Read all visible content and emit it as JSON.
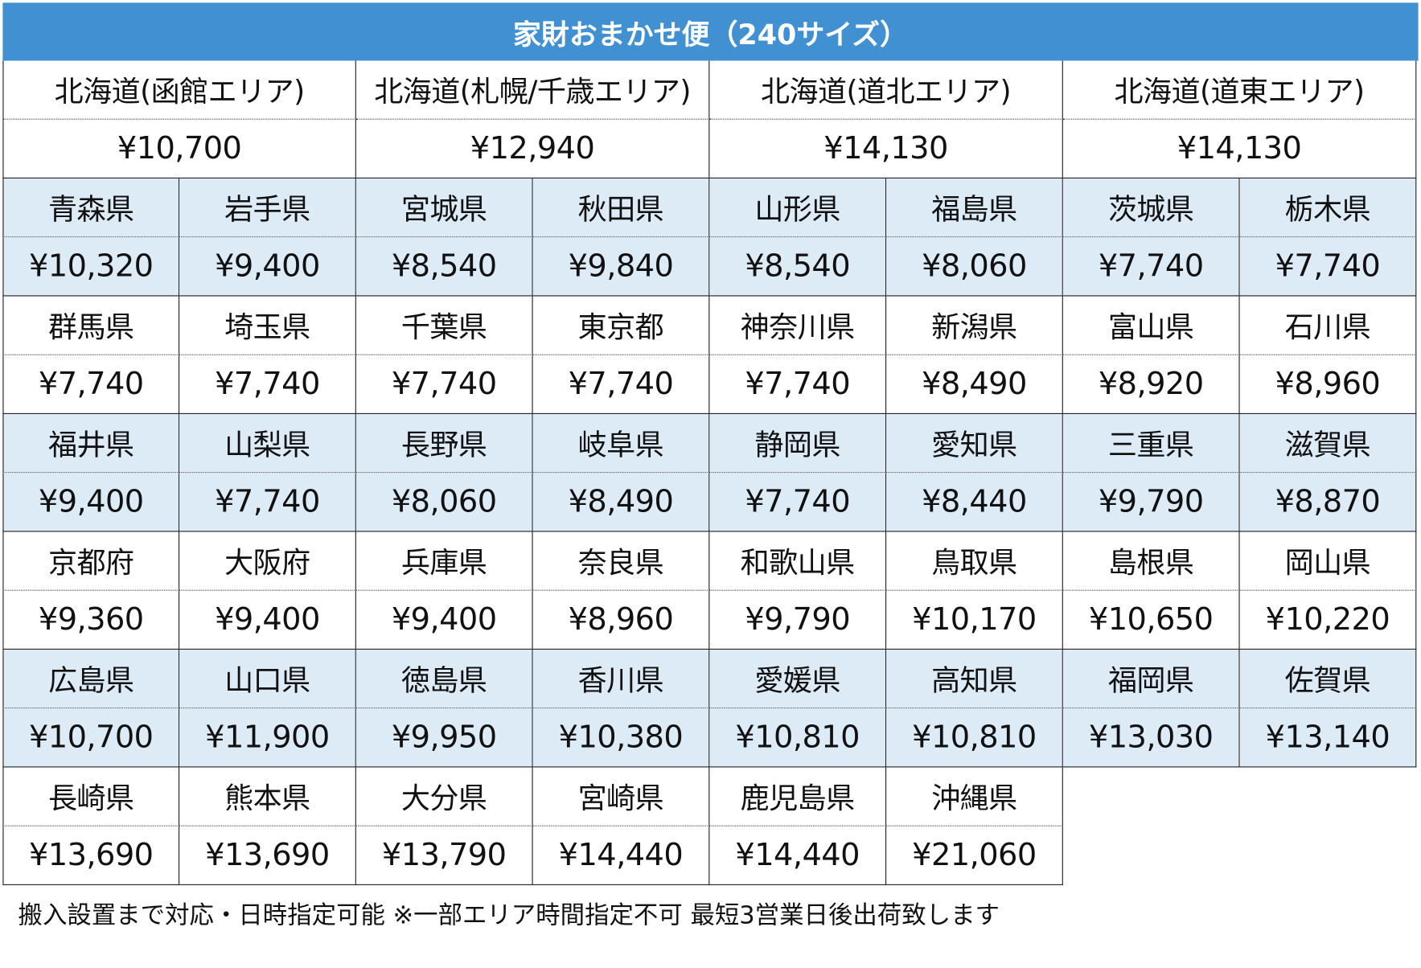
{
  "title": "家財おまかせ便（240サイズ）",
  "colors": {
    "header": "#4190d2",
    "shade": "#ddebf7"
  },
  "hokkaido": [
    {
      "name": "北海道(函館エリア)",
      "price": "¥10,700"
    },
    {
      "name": "北海道(札幌/千歳エリア)",
      "price": "¥12,940"
    },
    {
      "name": "北海道(道北エリア)",
      "price": "¥14,130"
    },
    {
      "name": "北海道(道東エリア)",
      "price": "¥14,130"
    }
  ],
  "rows": [
    [
      {
        "name": "青森県",
        "price": "¥10,320"
      },
      {
        "name": "岩手県",
        "price": "¥9,400"
      },
      {
        "name": "宮城県",
        "price": "¥8,540"
      },
      {
        "name": "秋田県",
        "price": "¥9,840"
      },
      {
        "name": "山形県",
        "price": "¥8,540"
      },
      {
        "name": "福島県",
        "price": "¥8,060"
      },
      {
        "name": "茨城県",
        "price": "¥7,740"
      },
      {
        "name": "栃木県",
        "price": "¥7,740"
      }
    ],
    [
      {
        "name": "群馬県",
        "price": "¥7,740"
      },
      {
        "name": "埼玉県",
        "price": "¥7,740"
      },
      {
        "name": "千葉県",
        "price": "¥7,740"
      },
      {
        "name": "東京都",
        "price": "¥7,740"
      },
      {
        "name": "神奈川県",
        "price": "¥7,740"
      },
      {
        "name": "新潟県",
        "price": "¥8,490"
      },
      {
        "name": "富山県",
        "price": "¥8,920"
      },
      {
        "name": "石川県",
        "price": "¥8,960"
      }
    ],
    [
      {
        "name": "福井県",
        "price": "¥9,400"
      },
      {
        "name": "山梨県",
        "price": "¥7,740"
      },
      {
        "name": "長野県",
        "price": "¥8,060"
      },
      {
        "name": "岐阜県",
        "price": "¥8,490"
      },
      {
        "name": "静岡県",
        "price": "¥7,740"
      },
      {
        "name": "愛知県",
        "price": "¥8,440"
      },
      {
        "name": "三重県",
        "price": "¥9,790"
      },
      {
        "name": "滋賀県",
        "price": "¥8,870"
      }
    ],
    [
      {
        "name": "京都府",
        "price": "¥9,360"
      },
      {
        "name": "大阪府",
        "price": "¥9,400"
      },
      {
        "name": "兵庫県",
        "price": "¥9,400"
      },
      {
        "name": "奈良県",
        "price": "¥8,960"
      },
      {
        "name": "和歌山県",
        "price": "¥9,790"
      },
      {
        "name": "鳥取県",
        "price": "¥10,170"
      },
      {
        "name": "島根県",
        "price": "¥10,650"
      },
      {
        "name": "岡山県",
        "price": "¥10,220"
      }
    ],
    [
      {
        "name": "広島県",
        "price": "¥10,700"
      },
      {
        "name": "山口県",
        "price": "¥11,900"
      },
      {
        "name": "徳島県",
        "price": "¥9,950"
      },
      {
        "name": "香川県",
        "price": "¥10,380"
      },
      {
        "name": "愛媛県",
        "price": "¥10,810"
      },
      {
        "name": "高知県",
        "price": "¥10,810"
      },
      {
        "name": "福岡県",
        "price": "¥13,030"
      },
      {
        "name": "佐賀県",
        "price": "¥13,140"
      }
    ],
    [
      {
        "name": "長崎県",
        "price": "¥13,690"
      },
      {
        "name": "熊本県",
        "price": "¥13,690"
      },
      {
        "name": "大分県",
        "price": "¥13,790"
      },
      {
        "name": "宮崎県",
        "price": "¥14,440"
      },
      {
        "name": "鹿児島県",
        "price": "¥14,440"
      },
      {
        "name": "沖縄県",
        "price": "¥21,060"
      }
    ]
  ],
  "note": "搬入設置まで対応・日時指定可能 ※一部エリア時間指定不可 最短3営業日後出荷致します"
}
